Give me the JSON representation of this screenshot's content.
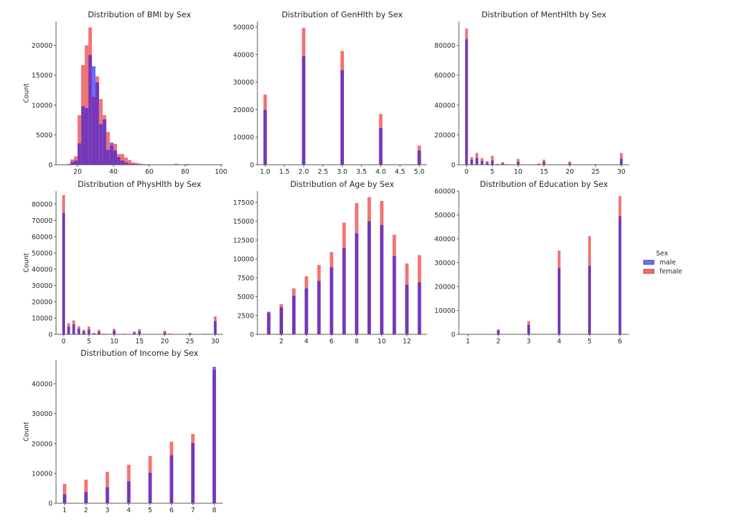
{
  "legend": {
    "title": "Sex",
    "placement": "right",
    "entries": [
      {
        "label": "male",
        "color": "#6666ee"
      },
      {
        "label": "female",
        "color": "#ee6666"
      }
    ]
  },
  "colors": {
    "male": "#5a5aff",
    "female": "#f26464",
    "overlap": "#7438b8",
    "axis": "#555555",
    "text": "#262626"
  },
  "chart_data": [
    {
      "type": "bar",
      "title": "Distribution of BMI by Sex",
      "xlabel": "",
      "ylabel": "Count",
      "xlim": [
        8,
        101
      ],
      "ylim": [
        0,
        24000
      ],
      "xticks": [
        20,
        40,
        60,
        80,
        100
      ],
      "yticks": [
        0,
        5000,
        10000,
        15000,
        20000
      ],
      "bin_width": 2,
      "x": [
        12,
        14,
        16,
        18,
        20,
        22,
        24,
        26,
        28,
        30,
        32,
        34,
        36,
        38,
        40,
        42,
        44,
        46,
        48,
        50,
        52,
        54,
        56,
        58,
        60,
        62,
        64,
        66,
        70,
        72,
        74,
        80,
        86
      ],
      "series": [
        {
          "name": "male",
          "values": [
            0,
            100,
            500,
            700,
            3600,
            9800,
            9500,
            18400,
            16500,
            13800,
            6800,
            7600,
            2500,
            3700,
            2400,
            1300,
            700,
            400,
            200,
            150,
            100,
            80,
            50,
            40,
            30,
            20,
            15,
            10,
            5,
            5,
            150,
            120,
            5
          ]
        },
        {
          "name": "female",
          "values": [
            0,
            150,
            900,
            1400,
            8300,
            16700,
            20000,
            23000,
            11400,
            14800,
            11000,
            8300,
            5500,
            3200,
            3500,
            1800,
            1800,
            1200,
            800,
            400,
            300,
            200,
            100,
            80,
            60,
            40,
            30,
            20,
            10,
            10,
            20,
            20,
            80
          ]
        }
      ]
    },
    {
      "type": "bar",
      "title": "Distribution of GenHlth by Sex",
      "xlabel": "",
      "ylabel": "",
      "xlim": [
        0.8,
        5.2
      ],
      "ylim": [
        0,
        52000
      ],
      "xticks": [
        "1.0",
        "1.5",
        "2.0",
        "2.5",
        "3.0",
        "3.5",
        "4.0",
        "4.5",
        "5.0"
      ],
      "yticks": [
        0,
        10000,
        20000,
        30000,
        40000,
        50000
      ],
      "x": [
        1,
        2,
        3,
        4,
        5
      ],
      "series": [
        {
          "name": "male",
          "values": [
            19900,
            39400,
            34300,
            13300,
            5200
          ]
        },
        {
          "name": "female",
          "values": [
            25500,
            49700,
            41300,
            18400,
            7000
          ]
        }
      ]
    },
    {
      "type": "bar",
      "title": "Distribution of MentHlth by Sex",
      "xlabel": "",
      "ylabel": "",
      "xlim": [
        -1.5,
        31.5
      ],
      "ylim": [
        0,
        96000
      ],
      "xticks": [
        0,
        5,
        10,
        15,
        20,
        25,
        30
      ],
      "yticks": [
        0,
        20000,
        40000,
        60000,
        80000
      ],
      "x": [
        0,
        1,
        2,
        3,
        4,
        5,
        6,
        7,
        8,
        10,
        12,
        14,
        15,
        20,
        25,
        28,
        30
      ],
      "series": [
        {
          "name": "male",
          "values": [
            84200,
            3400,
            4600,
            2700,
            1400,
            2900,
            400,
            900,
            200,
            2000,
            100,
            400,
            1800,
            1000,
            200,
            100,
            4000
          ]
        },
        {
          "name": "female",
          "values": [
            91300,
            5200,
            8000,
            4500,
            2400,
            6000,
            600,
            1800,
            400,
            3900,
            300,
            900,
            3400,
            2200,
            400,
            300,
            7900
          ]
        }
      ]
    },
    {
      "type": "bar",
      "title": "Distribution of PhysHlth by Sex",
      "xlabel": "",
      "ylabel": "Count",
      "xlim": [
        -1.5,
        31.5
      ],
      "ylim": [
        0,
        88000
      ],
      "xticks": [
        0,
        5,
        10,
        15,
        20,
        25,
        30
      ],
      "yticks": [
        0,
        10000,
        20000,
        30000,
        40000,
        50000,
        60000,
        70000,
        80000
      ],
      "x": [
        0,
        1,
        2,
        3,
        4,
        5,
        6,
        7,
        8,
        10,
        12,
        14,
        15,
        20,
        21,
        25,
        28,
        30
      ],
      "series": [
        {
          "name": "male",
          "values": [
            74600,
            4800,
            6300,
            3500,
            2000,
            2900,
            500,
            1600,
            200,
            2200,
            200,
            900,
            2000,
            1100,
            300,
            400,
            200,
            8100
          ]
        },
        {
          "name": "female",
          "values": [
            85500,
            6700,
            8600,
            5000,
            2800,
            4800,
            800,
            2800,
            400,
            3400,
            400,
            1800,
            3200,
            2200,
            500,
            900,
            400,
            11000
          ]
        }
      ]
    },
    {
      "type": "bar",
      "title": "Distribution of Age by Sex",
      "xlabel": "",
      "ylabel": "",
      "xlim": [
        0.1,
        13.6
      ],
      "ylim": [
        0,
        19000
      ],
      "xticks": [
        2,
        4,
        6,
        8,
        10,
        12
      ],
      "yticks": [
        "0",
        "2500",
        "5000",
        "7500",
        "10000",
        "12500",
        "15000",
        "17500"
      ],
      "x": [
        1,
        2,
        3,
        4,
        5,
        6,
        7,
        8,
        9,
        10,
        11,
        12,
        13
      ],
      "series": [
        {
          "name": "male",
          "values": [
            3000,
            3600,
            5100,
            6100,
            7100,
            8900,
            11500,
            13400,
            15000,
            14500,
            10400,
            6600,
            6900
          ]
        },
        {
          "name": "female",
          "values": [
            2800,
            4000,
            6100,
            7700,
            9200,
            10900,
            14800,
            17400,
            18200,
            17700,
            13200,
            9400,
            10500
          ]
        }
      ]
    },
    {
      "type": "bar",
      "title": "Distribution of Education by Sex",
      "xlabel": "",
      "ylabel": "",
      "xlim": [
        0.7,
        6.3
      ],
      "ylim": [
        0,
        60000
      ],
      "xticks": [
        1,
        2,
        3,
        4,
        5,
        6
      ],
      "yticks": [
        0,
        10000,
        20000,
        30000,
        40000,
        50000,
        60000
      ],
      "x": [
        1,
        2,
        3,
        4,
        5,
        6
      ],
      "series": [
        {
          "name": "male",
          "values": [
            100,
            1700,
            4000,
            27800,
            28700,
            49500
          ]
        },
        {
          "name": "female",
          "values": [
            100,
            2100,
            5500,
            35100,
            41100,
            57900
          ]
        }
      ]
    },
    {
      "type": "bar",
      "title": "Distribution of Income by Sex",
      "xlabel": "",
      "ylabel": "Count",
      "xlim": [
        0.6,
        8.4
      ],
      "ylim": [
        0,
        48000
      ],
      "xticks": [
        1,
        2,
        3,
        4,
        5,
        6,
        7,
        8
      ],
      "yticks": [
        0,
        10000,
        20000,
        30000,
        40000
      ],
      "x": [
        1,
        2,
        3,
        4,
        5,
        6,
        7,
        8
      ],
      "series": [
        {
          "name": "male",
          "values": [
            3000,
            3800,
            5400,
            7300,
            10200,
            16100,
            20200,
            45700
          ]
        },
        {
          "name": "female",
          "values": [
            6500,
            7900,
            10500,
            12900,
            15800,
            20600,
            23200,
            44800
          ]
        }
      ]
    }
  ]
}
